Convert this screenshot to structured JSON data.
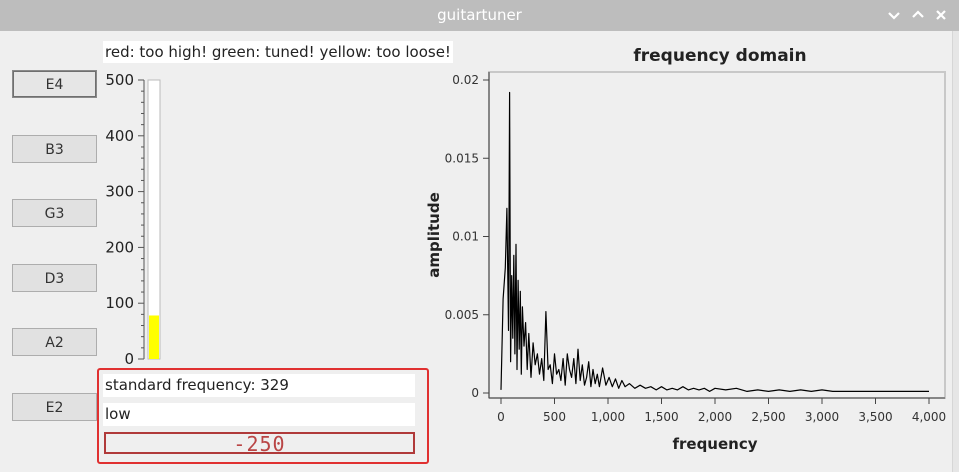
{
  "window": {
    "title": "guitartuner"
  },
  "strings": [
    {
      "label": "E4",
      "active": true
    },
    {
      "label": "B3",
      "active": false
    },
    {
      "label": "G3",
      "active": false
    },
    {
      "label": "D3",
      "active": false
    },
    {
      "label": "A2",
      "active": false
    },
    {
      "label": "E2",
      "active": false
    }
  ],
  "legend": "red: too high! green: tuned! yellow: too loose!",
  "gauge": {
    "min": 0,
    "max": 500,
    "ticks": [
      "0",
      "100",
      "200",
      "300",
      "400",
      "500"
    ],
    "level": 78,
    "fill_color": "#ffff00"
  },
  "info": {
    "standard_frequency": "standard frequency: 329",
    "status": "low",
    "lcd_value": "-250"
  },
  "chart_data": {
    "type": "line",
    "title": "frequency domain",
    "xlabel": "frequency",
    "ylabel": "amplitude",
    "xlim": [
      0,
      4000
    ],
    "ylim": [
      0,
      0.02
    ],
    "x_ticks": [
      "0",
      "500",
      "1,000",
      "1,500",
      "2,000",
      "2,500",
      "3,000",
      "3,500",
      "4,000"
    ],
    "y_ticks": [
      "0",
      "0.005",
      "0.01",
      "0.015",
      "0.02"
    ],
    "grid": false,
    "series": [
      {
        "x": [
          0,
          20,
          40,
          55,
          70,
          80,
          90,
          100,
          110,
          120,
          130,
          140,
          150,
          160,
          170,
          180,
          190,
          200,
          215,
          230,
          245,
          260,
          280,
          300,
          320,
          340,
          360,
          380,
          400,
          420,
          440,
          460,
          480,
          500,
          520,
          540,
          560,
          580,
          600,
          620,
          640,
          660,
          680,
          700,
          720,
          740,
          760,
          780,
          800,
          820,
          840,
          860,
          880,
          900,
          920,
          950,
          980,
          1010,
          1040,
          1070,
          1100,
          1130,
          1160,
          1200,
          1250,
          1300,
          1350,
          1400,
          1450,
          1500,
          1550,
          1600,
          1650,
          1700,
          1750,
          1800,
          1850,
          1900,
          1950,
          2000,
          2100,
          2200,
          2300,
          2400,
          2500,
          2600,
          2700,
          2800,
          2900,
          3000,
          3100,
          3200,
          3300,
          3400,
          3500,
          3600,
          3700,
          3800,
          3900,
          4000
        ],
        "values": [
          0.0002,
          0.006,
          0.008,
          0.0118,
          0.004,
          0.0192,
          0.002,
          0.0075,
          0.0035,
          0.0088,
          0.0025,
          0.0095,
          0.0015,
          0.0072,
          0.0028,
          0.0065,
          0.0012,
          0.0055,
          0.003,
          0.0045,
          0.0015,
          0.0038,
          0.001,
          0.0032,
          0.0018,
          0.0025,
          0.0012,
          0.0022,
          0.0008,
          0.0052,
          0.0015,
          0.0018,
          0.0006,
          0.0025,
          0.0012,
          0.0015,
          0.0008,
          0.0022,
          0.0005,
          0.0025,
          0.0015,
          0.001,
          0.0022,
          0.0006,
          0.0028,
          0.0008,
          0.0018,
          0.0005,
          0.001,
          0.002,
          0.0004,
          0.0015,
          0.0006,
          0.0012,
          0.0004,
          0.0016,
          0.0005,
          0.001,
          0.0004,
          0.0009,
          0.0003,
          0.0008,
          0.0004,
          0.0006,
          0.0003,
          0.0005,
          0.0003,
          0.0004,
          0.0002,
          0.0004,
          0.0002,
          0.0003,
          0.0002,
          0.0004,
          0.0002,
          0.0003,
          0.0002,
          0.0003,
          0.0001,
          0.0003,
          0.0002,
          0.0003,
          0.0001,
          0.0002,
          0.0001,
          0.0002,
          0.0001,
          0.0002,
          0.0001,
          0.0002,
          0.0001,
          0.0001,
          0.0001,
          0.0001,
          0.0001,
          0.0001,
          0.0001,
          0.0001,
          0.0001,
          0.0001
        ]
      }
    ]
  }
}
